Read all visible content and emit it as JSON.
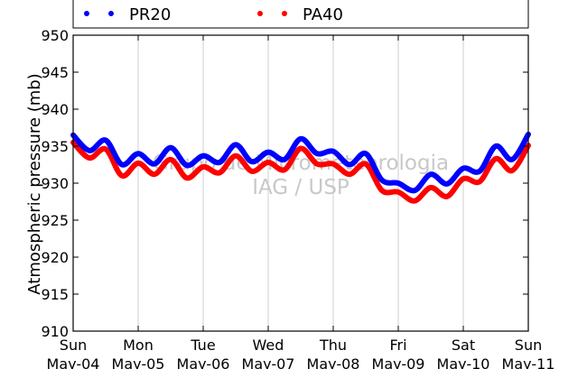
{
  "chart_data": {
    "type": "line",
    "ylabel": "Atmospheric pressure (mb)",
    "ylim": [
      910,
      950
    ],
    "yticks": [
      "910",
      "915",
      "920",
      "925",
      "930",
      "935",
      "940",
      "945",
      "950"
    ],
    "x_tick_labels": [
      {
        "day": "Sun",
        "date": "May-04"
      },
      {
        "day": "Mon",
        "date": "May-05"
      },
      {
        "day": "Tue",
        "date": "May-06"
      },
      {
        "day": "Wed",
        "date": "May-07"
      },
      {
        "day": "Thu",
        "date": "May-08"
      },
      {
        "day": "Fri",
        "date": "May-09"
      },
      {
        "day": "Sat",
        "date": "May-10"
      },
      {
        "day": "Sun",
        "date": "May-11"
      }
    ],
    "grid": "vertical",
    "legend_placement": "top",
    "watermark": [
      "Grupo de Micrometeorologia",
      "IAG / USP"
    ],
    "x": [
      0.0,
      0.25,
      0.5,
      0.75,
      1.0,
      1.25,
      1.5,
      1.75,
      2.0,
      2.25,
      2.5,
      2.75,
      3.0,
      3.25,
      3.5,
      3.75,
      4.0,
      4.25,
      4.5,
      4.75,
      5.0,
      5.25,
      5.5,
      5.75,
      6.0,
      6.25,
      6.5,
      6.75,
      7.0
    ],
    "series": [
      {
        "name": "PR20",
        "color": "#0000ff",
        "values": [
          936.5,
          934.4,
          935.8,
          932.5,
          934.0,
          932.6,
          934.8,
          932.4,
          933.7,
          932.8,
          935.2,
          932.9,
          934.2,
          933.2,
          936.0,
          934.0,
          934.3,
          932.5,
          934.0,
          930.4,
          930.0,
          929.0,
          931.2,
          929.9,
          932.0,
          931.6,
          935.0,
          933.2,
          936.6
        ]
      },
      {
        "name": "PA40",
        "color": "#ff0000",
        "values": [
          935.5,
          933.4,
          934.6,
          931.0,
          932.7,
          931.2,
          933.2,
          930.7,
          932.2,
          931.4,
          933.7,
          931.6,
          932.8,
          931.8,
          934.7,
          932.6,
          932.6,
          931.2,
          932.6,
          929.0,
          928.8,
          927.6,
          929.4,
          928.2,
          930.6,
          930.2,
          933.3,
          931.7,
          935.1
        ]
      }
    ]
  }
}
